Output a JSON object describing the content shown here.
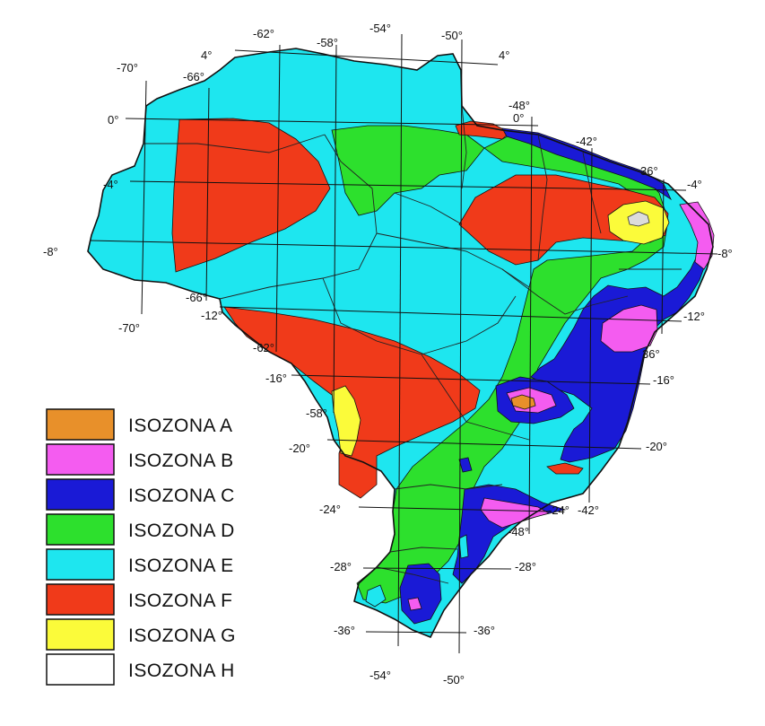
{
  "map": {
    "colors": {
      "A": "#e8902a",
      "B": "#f45cf0",
      "C": "#1a1ad6",
      "D": "#2de02d",
      "E": "#1ee6ef",
      "F": "#f03a1a",
      "G": "#fbfb3a",
      "H": "#ffffff"
    },
    "legend": [
      {
        "key": "A",
        "label": "ISOZONA A"
      },
      {
        "key": "B",
        "label": "ISOZONA B"
      },
      {
        "key": "C",
        "label": "ISOZONA C"
      },
      {
        "key": "D",
        "label": "ISOZONA D"
      },
      {
        "key": "E",
        "label": "ISOZONA E"
      },
      {
        "key": "F",
        "label": "ISOZONA F"
      },
      {
        "key": "G",
        "label": "ISOZONA G"
      },
      {
        "key": "H",
        "label": "ISOZONA H"
      }
    ],
    "coordinate_labels": [
      "-62°",
      "-54°",
      "-58°",
      "-50°",
      "4°",
      "4°",
      "-70°",
      "-66°",
      "-48°",
      "0°",
      "0°",
      "-42°",
      "36°",
      "-4°",
      "-4°",
      "-8°",
      "-8°",
      "-66°",
      "-12°",
      "-12°",
      "-70°",
      "-62°",
      "36°",
      "-16°",
      "-16°",
      "-58°",
      "-20°",
      "-20°",
      "-24°",
      "-24°",
      "-42°",
      "-48°",
      "-28°",
      "-28°",
      "-36°",
      "-36°",
      "-54°",
      "-50°"
    ]
  }
}
